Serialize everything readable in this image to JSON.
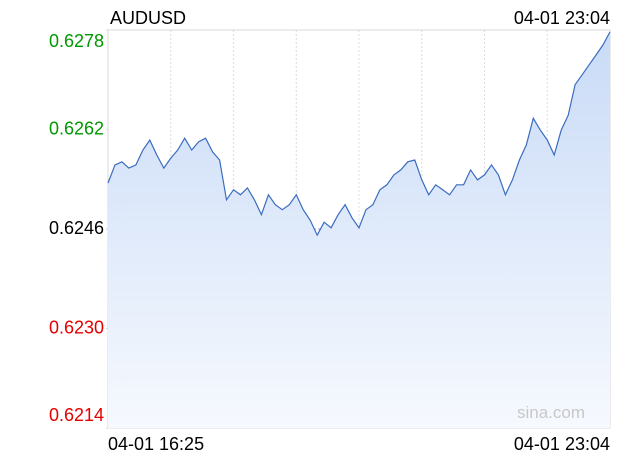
{
  "chart_data": {
    "type": "line",
    "title": "AUDUSD",
    "timestamp": "04-01 23:04",
    "watermark": "sina.com",
    "x_range_labels": [
      "04-01 16:25",
      "04-01 23:04"
    ],
    "values": [
      0.62534,
      0.62563,
      0.62568,
      0.62558,
      0.62563,
      0.62587,
      0.62603,
      0.62579,
      0.62558,
      0.62574,
      0.62587,
      0.62606,
      0.62587,
      0.626,
      0.62606,
      0.62584,
      0.62571,
      0.62507,
      0.62523,
      0.62515,
      0.62526,
      0.62507,
      0.62483,
      0.62515,
      0.62499,
      0.62491,
      0.62499,
      0.62515,
      0.62491,
      0.62474,
      0.6245,
      0.62471,
      0.62462,
      0.62483,
      0.62499,
      0.62478,
      0.62462,
      0.62491,
      0.62499,
      0.62523,
      0.62531,
      0.62547,
      0.62555,
      0.62568,
      0.62571,
      0.62539,
      0.62515,
      0.62531,
      0.62523,
      0.62515,
      0.62531,
      0.62531,
      0.62555,
      0.62539,
      0.62547,
      0.62563,
      0.62547,
      0.62515,
      0.62539,
      0.62571,
      0.62595,
      0.62638,
      0.62619,
      0.62603,
      0.62579,
      0.62619,
      0.62643,
      0.62692,
      0.62708,
      0.62724,
      0.6274,
      0.62756,
      0.62777
    ],
    "color": "#3a6cc0",
    "reference_line": 0.6246,
    "up_color": "#009900",
    "down_color": "#e60000",
    "ylim": [
      0.6214,
      0.6278
    ],
    "yticks": [
      0.6278,
      0.6262,
      0.6246,
      {
        "value": 0.623,
        "label": "0.6230"
      },
      0.6214
    ],
    "grid": true
  }
}
